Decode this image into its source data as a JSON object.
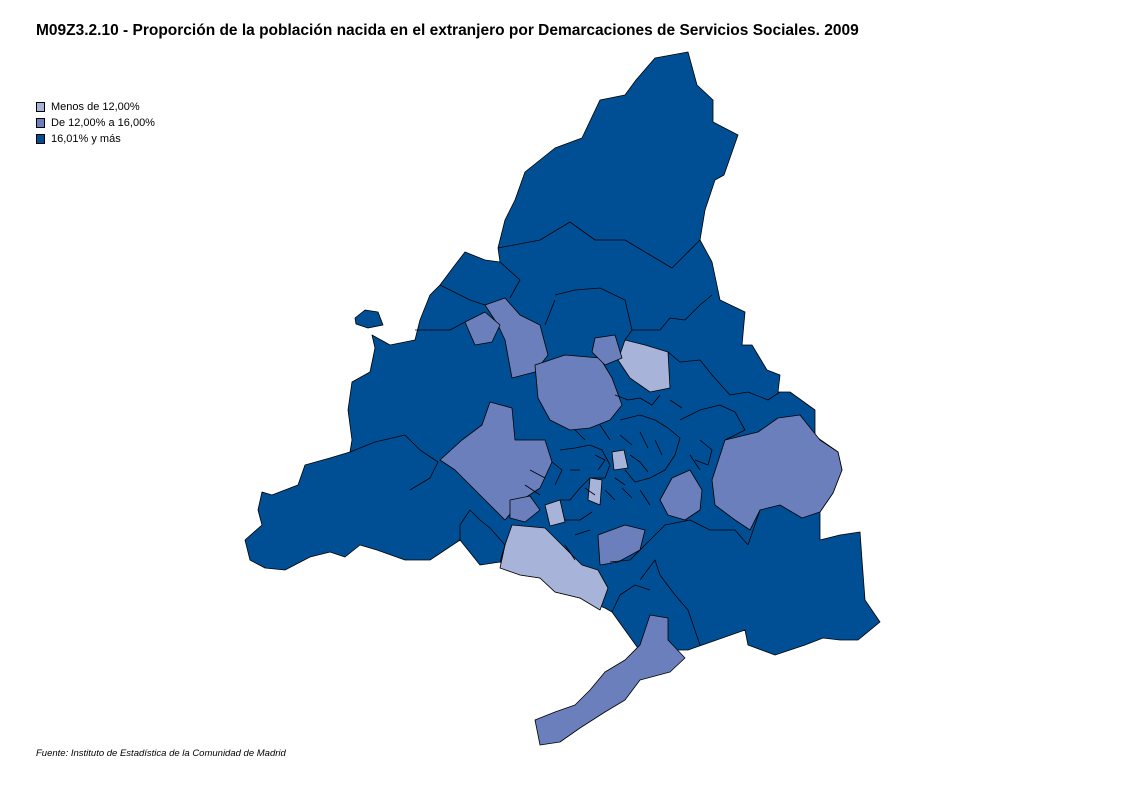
{
  "title": "M09Z3.2.10 - Proporción de la población nacida en el extranjero por Demarcaciones de Servicios Sociales. 2009",
  "legend": {
    "items": [
      {
        "label": "Menos de 12,00%",
        "color": "#a7b3d8"
      },
      {
        "label": "De 12,00% a 16,00%",
        "color": "#6a7fbb"
      },
      {
        "label": "16,01% y más",
        "color": "#004f95"
      }
    ]
  },
  "source": "Fuente: Instituto de Estadística de la Comunidad de Madrid"
}
